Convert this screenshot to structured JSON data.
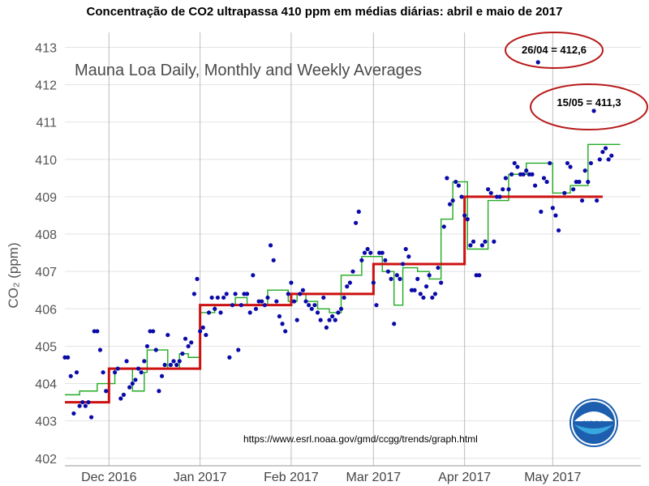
{
  "title": "Concentração de CO2 ultrapassa 410 ppm em médias diárias: abril e maio de 2017",
  "chart_data": {
    "type": "line",
    "subtitle": "Mauna Loa Daily, Monthly and Weekly Averages",
    "ylabel": "CO₂ (ppm)",
    "ylim": [
      401.8,
      413.4
    ],
    "xlim": [
      "2016-11-16",
      "2017-05-31"
    ],
    "y_ticks": [
      402,
      403,
      404,
      405,
      406,
      407,
      408,
      409,
      410,
      411,
      412,
      413
    ],
    "x_ticks": [
      {
        "date": "2016-12-01",
        "label": "Dec 2016"
      },
      {
        "date": "2017-01-01",
        "label": "Jan 2017"
      },
      {
        "date": "2017-02-01",
        "label": "Feb 2017"
      },
      {
        "date": "2017-03-01",
        "label": "Mar 2017"
      },
      {
        "date": "2017-04-01",
        "label": "Apr 2017"
      },
      {
        "date": "2017-05-01",
        "label": "May 2017"
      }
    ],
    "grid": true,
    "series": [
      {
        "role": "daily",
        "style": "points",
        "color": "#0a0aa8",
        "points": [
          [
            "2016-11-16",
            404.7
          ],
          [
            "2016-11-17",
            404.7
          ],
          [
            "2016-11-18",
            404.2
          ],
          [
            "2016-11-19",
            403.2
          ],
          [
            "2016-11-20",
            404.3
          ],
          [
            "2016-11-21",
            403.4
          ],
          [
            "2016-11-22",
            403.5
          ],
          [
            "2016-11-23",
            403.4
          ],
          [
            "2016-11-24",
            403.5
          ],
          [
            "2016-11-25",
            403.1
          ],
          [
            "2016-11-26",
            405.4
          ],
          [
            "2016-11-27",
            405.4
          ],
          [
            "2016-11-28",
            404.9
          ],
          [
            "2016-11-29",
            404.3
          ],
          [
            "2016-11-30",
            403.8
          ],
          [
            "2016-12-03",
            404.3
          ],
          [
            "2016-12-04",
            404.4
          ],
          [
            "2016-12-05",
            403.6
          ],
          [
            "2016-12-06",
            403.7
          ],
          [
            "2016-12-07",
            404.6
          ],
          [
            "2016-12-08",
            403.9
          ],
          [
            "2016-12-09",
            404.0
          ],
          [
            "2016-12-10",
            404.1
          ],
          [
            "2016-12-11",
            404.4
          ],
          [
            "2016-12-12",
            404.3
          ],
          [
            "2016-12-13",
            404.6
          ],
          [
            "2016-12-14",
            405.0
          ],
          [
            "2016-12-15",
            405.4
          ],
          [
            "2016-12-16",
            405.4
          ],
          [
            "2016-12-17",
            404.9
          ],
          [
            "2016-12-18",
            403.8
          ],
          [
            "2016-12-19",
            404.2
          ],
          [
            "2016-12-20",
            404.5
          ],
          [
            "2016-12-21",
            405.3
          ],
          [
            "2016-12-22",
            404.5
          ],
          [
            "2016-12-23",
            404.6
          ],
          [
            "2016-12-24",
            404.5
          ],
          [
            "2016-12-25",
            404.6
          ],
          [
            "2016-12-26",
            404.8
          ],
          [
            "2016-12-27",
            405.2
          ],
          [
            "2016-12-28",
            405.0
          ],
          [
            "2016-12-29",
            405.1
          ],
          [
            "2016-12-30",
            406.4
          ],
          [
            "2016-12-31",
            406.8
          ],
          [
            "2017-01-01",
            405.4
          ],
          [
            "2017-01-02",
            405.5
          ],
          [
            "2017-01-03",
            405.3
          ],
          [
            "2017-01-04",
            405.9
          ],
          [
            "2017-01-05",
            406.3
          ],
          [
            "2017-01-06",
            406.0
          ],
          [
            "2017-01-07",
            406.3
          ],
          [
            "2017-01-08",
            405.9
          ],
          [
            "2017-01-09",
            406.3
          ],
          [
            "2017-01-10",
            406.4
          ],
          [
            "2017-01-11",
            404.7
          ],
          [
            "2017-01-12",
            406.1
          ],
          [
            "2017-01-13",
            406.4
          ],
          [
            "2017-01-14",
            404.9
          ],
          [
            "2017-01-15",
            406.1
          ],
          [
            "2017-01-16",
            406.4
          ],
          [
            "2017-01-17",
            406.4
          ],
          [
            "2017-01-18",
            405.9
          ],
          [
            "2017-01-19",
            406.9
          ],
          [
            "2017-01-20",
            406.0
          ],
          [
            "2017-01-21",
            406.2
          ],
          [
            "2017-01-22",
            406.2
          ],
          [
            "2017-01-23",
            406.1
          ],
          [
            "2017-01-24",
            406.3
          ],
          [
            "2017-01-25",
            407.7
          ],
          [
            "2017-01-26",
            407.3
          ],
          [
            "2017-01-27",
            406.2
          ],
          [
            "2017-01-28",
            405.8
          ],
          [
            "2017-01-29",
            405.6
          ],
          [
            "2017-01-30",
            405.4
          ],
          [
            "2017-01-31",
            406.4
          ],
          [
            "2017-02-01",
            406.7
          ],
          [
            "2017-02-02",
            406.2
          ],
          [
            "2017-02-03",
            405.7
          ],
          [
            "2017-02-04",
            406.4
          ],
          [
            "2017-02-05",
            406.5
          ],
          [
            "2017-02-06",
            406.2
          ],
          [
            "2017-02-07",
            406.1
          ],
          [
            "2017-02-08",
            406.0
          ],
          [
            "2017-02-09",
            406.1
          ],
          [
            "2017-02-10",
            405.9
          ],
          [
            "2017-02-11",
            405.7
          ],
          [
            "2017-02-12",
            406.3
          ],
          [
            "2017-02-13",
            405.5
          ],
          [
            "2017-02-14",
            405.7
          ],
          [
            "2017-02-15",
            405.8
          ],
          [
            "2017-02-16",
            405.7
          ],
          [
            "2017-02-17",
            405.9
          ],
          [
            "2017-02-18",
            406.0
          ],
          [
            "2017-02-19",
            406.3
          ],
          [
            "2017-02-20",
            406.6
          ],
          [
            "2017-02-21",
            406.7
          ],
          [
            "2017-02-22",
            407.0
          ],
          [
            "2017-02-23",
            408.3
          ],
          [
            "2017-02-24",
            408.6
          ],
          [
            "2017-02-25",
            407.3
          ],
          [
            "2017-02-26",
            407.5
          ],
          [
            "2017-02-27",
            407.6
          ],
          [
            "2017-02-28",
            407.5
          ],
          [
            "2017-03-01",
            406.7
          ],
          [
            "2017-03-02",
            406.1
          ],
          [
            "2017-03-03",
            407.5
          ],
          [
            "2017-03-04",
            407.5
          ],
          [
            "2017-03-05",
            407.3
          ],
          [
            "2017-03-06",
            407.0
          ],
          [
            "2017-03-07",
            406.8
          ],
          [
            "2017-03-08",
            405.6
          ],
          [
            "2017-03-09",
            406.9
          ],
          [
            "2017-03-10",
            406.8
          ],
          [
            "2017-03-11",
            407.2
          ],
          [
            "2017-03-12",
            407.6
          ],
          [
            "2017-03-13",
            407.4
          ],
          [
            "2017-03-14",
            406.5
          ],
          [
            "2017-03-15",
            406.5
          ],
          [
            "2017-03-16",
            406.8
          ],
          [
            "2017-03-17",
            406.4
          ],
          [
            "2017-03-18",
            406.3
          ],
          [
            "2017-03-19",
            406.6
          ],
          [
            "2017-03-20",
            406.9
          ],
          [
            "2017-03-21",
            406.3
          ],
          [
            "2017-03-22",
            406.4
          ],
          [
            "2017-03-23",
            407.1
          ],
          [
            "2017-03-24",
            406.7
          ],
          [
            "2017-03-25",
            408.2
          ],
          [
            "2017-03-26",
            409.5
          ],
          [
            "2017-03-27",
            408.8
          ],
          [
            "2017-03-28",
            408.9
          ],
          [
            "2017-03-29",
            409.4
          ],
          [
            "2017-03-30",
            409.3
          ],
          [
            "2017-03-31",
            409.0
          ],
          [
            "2017-04-01",
            408.5
          ],
          [
            "2017-04-02",
            408.4
          ],
          [
            "2017-04-03",
            407.7
          ],
          [
            "2017-04-04",
            407.8
          ],
          [
            "2017-04-05",
            406.9
          ],
          [
            "2017-04-06",
            406.9
          ],
          [
            "2017-04-07",
            407.7
          ],
          [
            "2017-04-08",
            407.8
          ],
          [
            "2017-04-09",
            409.2
          ],
          [
            "2017-04-10",
            409.1
          ],
          [
            "2017-04-11",
            407.8
          ],
          [
            "2017-04-12",
            409.0
          ],
          [
            "2017-04-13",
            409.0
          ],
          [
            "2017-04-14",
            409.2
          ],
          [
            "2017-04-15",
            409.5
          ],
          [
            "2017-04-16",
            409.2
          ],
          [
            "2017-04-17",
            409.6
          ],
          [
            "2017-04-18",
            409.9
          ],
          [
            "2017-04-19",
            409.8
          ],
          [
            "2017-04-20",
            409.6
          ],
          [
            "2017-04-21",
            409.6
          ],
          [
            "2017-04-22",
            409.7
          ],
          [
            "2017-04-23",
            409.6
          ],
          [
            "2017-04-24",
            409.6
          ],
          [
            "2017-04-25",
            409.3
          ],
          [
            "2017-04-26",
            412.6
          ],
          [
            "2017-04-27",
            408.6
          ],
          [
            "2017-04-28",
            409.5
          ],
          [
            "2017-04-29",
            409.4
          ],
          [
            "2017-04-30",
            409.9
          ],
          [
            "2017-05-01",
            408.7
          ],
          [
            "2017-05-02",
            408.5
          ],
          [
            "2017-05-03",
            408.1
          ],
          [
            "2017-05-05",
            409.1
          ],
          [
            "2017-05-06",
            409.9
          ],
          [
            "2017-05-07",
            409.8
          ],
          [
            "2017-05-08",
            409.2
          ],
          [
            "2017-05-09",
            409.4
          ],
          [
            "2017-05-10",
            409.4
          ],
          [
            "2017-05-11",
            408.9
          ],
          [
            "2017-05-12",
            409.7
          ],
          [
            "2017-05-13",
            409.4
          ],
          [
            "2017-05-14",
            409.9
          ],
          [
            "2017-05-15",
            411.3
          ],
          [
            "2017-05-16",
            408.9
          ],
          [
            "2017-05-17",
            410.0
          ],
          [
            "2017-05-18",
            410.2
          ],
          [
            "2017-05-19",
            410.3
          ],
          [
            "2017-05-20",
            410.0
          ],
          [
            "2017-05-21",
            410.1
          ]
        ]
      },
      {
        "role": "weekly",
        "style": "step",
        "color": "#22aa22",
        "points": [
          [
            "2016-11-16",
            403.7
          ],
          [
            "2016-11-21",
            403.8
          ],
          [
            "2016-11-27",
            404.0
          ],
          [
            "2016-12-03",
            404.4
          ],
          [
            "2016-12-09",
            403.8
          ],
          [
            "2016-12-13",
            404.3
          ],
          [
            "2016-12-14",
            404.9
          ],
          [
            "2016-12-21",
            404.4
          ],
          [
            "2016-12-25",
            404.8
          ],
          [
            "2016-12-28",
            404.7
          ],
          [
            "2017-01-01",
            405.9
          ],
          [
            "2017-01-06",
            406.1
          ],
          [
            "2017-01-13",
            406.3
          ],
          [
            "2017-01-17",
            406.1
          ],
          [
            "2017-01-24",
            406.5
          ],
          [
            "2017-01-31",
            406.2
          ],
          [
            "2017-02-03",
            406.4
          ],
          [
            "2017-02-06",
            406.2
          ],
          [
            "2017-02-10",
            406.0
          ],
          [
            "2017-02-14",
            405.9
          ],
          [
            "2017-02-18",
            406.9
          ],
          [
            "2017-02-25",
            407.4
          ],
          [
            "2017-03-04",
            407.0
          ],
          [
            "2017-03-08",
            406.1
          ],
          [
            "2017-03-11",
            407.1
          ],
          [
            "2017-03-16",
            407.0
          ],
          [
            "2017-03-20",
            406.8
          ],
          [
            "2017-03-24",
            408.4
          ],
          [
            "2017-03-28",
            409.4
          ],
          [
            "2017-04-02",
            407.6
          ],
          [
            "2017-04-09",
            408.9
          ],
          [
            "2017-04-16",
            409.6
          ],
          [
            "2017-04-22",
            409.9
          ],
          [
            "2017-04-29",
            409.9
          ],
          [
            "2017-05-01",
            409.1
          ],
          [
            "2017-05-07",
            409.3
          ],
          [
            "2017-05-13",
            410.4
          ],
          [
            "2017-05-24",
            410.4
          ]
        ]
      },
      {
        "role": "monthly",
        "style": "step",
        "color": "#cc1111",
        "points": [
          [
            "2016-11-16",
            403.5
          ],
          [
            "2016-12-01",
            404.4
          ],
          [
            "2017-01-01",
            406.1
          ],
          [
            "2017-02-01",
            406.4
          ],
          [
            "2017-03-01",
            407.2
          ],
          [
            "2017-04-01",
            409.0
          ],
          [
            "2017-05-01",
            409.0
          ]
        ]
      }
    ],
    "annotations": [
      {
        "text": "26/04 = 412,6",
        "date": "2017-04-26",
        "value": 412.6
      },
      {
        "text": "15/05 = 411,3",
        "date": "2017-05-15",
        "value": 411.3
      }
    ],
    "source_url": "https://www.esrl.noaa.gov/gmd/ccgg/trends/graph.html",
    "logo_text": "NOAA"
  }
}
